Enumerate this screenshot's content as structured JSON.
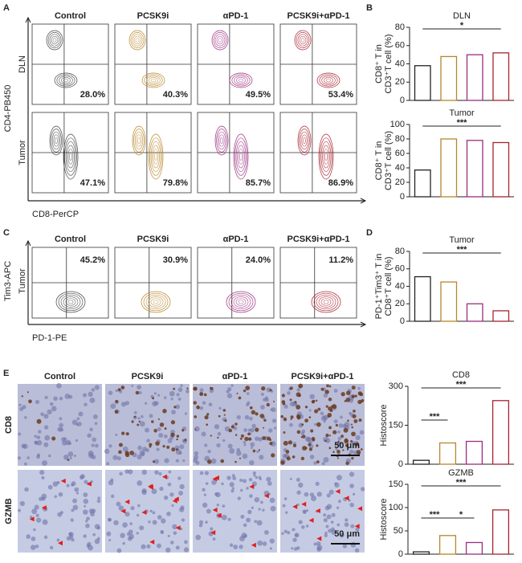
{
  "panels": {
    "A": {
      "letter": "A",
      "columns": [
        "Control",
        "PCSK9i",
        "αPD-1",
        "PCSK9i+αPD-1"
      ],
      "colors": [
        "#9a9a9a",
        "#b8862b",
        "#9b2d7f",
        "#a8232f"
      ],
      "rows": [
        "DLN",
        "Tumor"
      ],
      "percents": [
        [
          "28.0%",
          "40.3%",
          "49.5%",
          "53.4%"
        ],
        [
          "47.1%",
          "79.8%",
          "85.7%",
          "86.9%"
        ]
      ],
      "y_axis": "CD4-PB450",
      "x_axis": "CD8-PerCP"
    },
    "B": {
      "letter": "B"
    },
    "C": {
      "letter": "C",
      "columns": [
        "Control",
        "PCSK9i",
        "αPD-1",
        "PCSK9i+αPD-1"
      ],
      "colors": [
        "#9a9a9a",
        "#b8862b",
        "#9b2d7f",
        "#a8232f"
      ],
      "rows": [
        "Tumor"
      ],
      "percents": [
        [
          "45.2%",
          "30.9%",
          "24.0%",
          "11.2%"
        ]
      ],
      "y_axis": "Tim3-APC",
      "x_axis": "PD-1-PE"
    },
    "D": {
      "letter": "D"
    },
    "E": {
      "letter": "E",
      "columns": [
        "Control",
        "PCSK9i",
        "αPD-1",
        "PCSK9i+αPD-1"
      ],
      "colors": [
        "#9a9a9a",
        "#b8862b",
        "#9b2d7f",
        "#a8232f"
      ],
      "rows": [
        "CD8",
        "GZMB"
      ],
      "scale": "50 μm"
    }
  },
  "chart_data": [
    {
      "type": "bar",
      "title": "DLN",
      "ylabel": [
        "CD8⁺ T in",
        "CD3⁺T cell (%)"
      ],
      "categories": [
        null,
        null,
        null,
        null
      ],
      "values": [
        38,
        48,
        50,
        52
      ],
      "colors": [
        "#222222",
        "#b8862b",
        "#9b2d7f",
        "#a8232f"
      ],
      "ylim": [
        0,
        80
      ],
      "yticks": [
        0,
        20,
        40,
        60,
        80
      ],
      "significance": [
        {
          "label": "*",
          "from": 0,
          "to": 3
        }
      ]
    },
    {
      "type": "bar",
      "title": "Tumor",
      "ylabel": [
        "CD8⁺ T in",
        "CD3⁺T cell (%)"
      ],
      "categories": [
        null,
        null,
        null,
        null
      ],
      "values": [
        37,
        80,
        78,
        75
      ],
      "colors": [
        "#222222",
        "#b8862b",
        "#9b2d7f",
        "#a8232f"
      ],
      "ylim": [
        0,
        100
      ],
      "yticks": [
        0,
        20,
        40,
        60,
        80,
        100
      ],
      "significance": [
        {
          "label": "***",
          "from": 0,
          "to": 3
        }
      ]
    },
    {
      "type": "bar",
      "title": "Tumor",
      "ylabel": [
        "PD-1⁺Tim3⁺ T in",
        "CD8⁺T cell (%)"
      ],
      "categories": [
        null,
        null,
        null,
        null
      ],
      "values": [
        51,
        45,
        20,
        12
      ],
      "colors": [
        "#222222",
        "#b8862b",
        "#9b2d7f",
        "#a8232f"
      ],
      "ylim": [
        0,
        80
      ],
      "yticks": [
        0,
        20,
        40,
        60,
        80
      ],
      "significance": [
        {
          "label": "***",
          "from": 0,
          "to": 3
        }
      ]
    },
    {
      "type": "bar",
      "title": "CD8",
      "ylabel": [
        "Histoscore"
      ],
      "categories": [
        null,
        null,
        null,
        null
      ],
      "values": [
        15,
        82,
        88,
        245
      ],
      "colors": [
        "#222222",
        "#b8862b",
        "#9b2d7f",
        "#a8232f"
      ],
      "ylim": [
        0,
        300
      ],
      "yticks": [
        0,
        150,
        300
      ],
      "significance": [
        {
          "label": "***",
          "from": 0,
          "to": 1
        },
        {
          "label": "***",
          "from": 0,
          "to": 3
        }
      ]
    },
    {
      "type": "bar",
      "title": "GZMB",
      "ylabel": [
        "Histoscore"
      ],
      "categories": [
        null,
        null,
        null,
        null
      ],
      "values": [
        5,
        40,
        25,
        95
      ],
      "colors": [
        "#222222",
        "#b8862b",
        "#9b2d7f",
        "#a8232f"
      ],
      "ylim": [
        0,
        150
      ],
      "yticks": [
        0,
        50,
        100,
        150
      ],
      "significance": [
        {
          "label": "***",
          "from": 0,
          "to": 1
        },
        {
          "label": "*",
          "from": 1,
          "to": 2
        },
        {
          "label": "***",
          "from": 0,
          "to": 3
        }
      ]
    }
  ]
}
